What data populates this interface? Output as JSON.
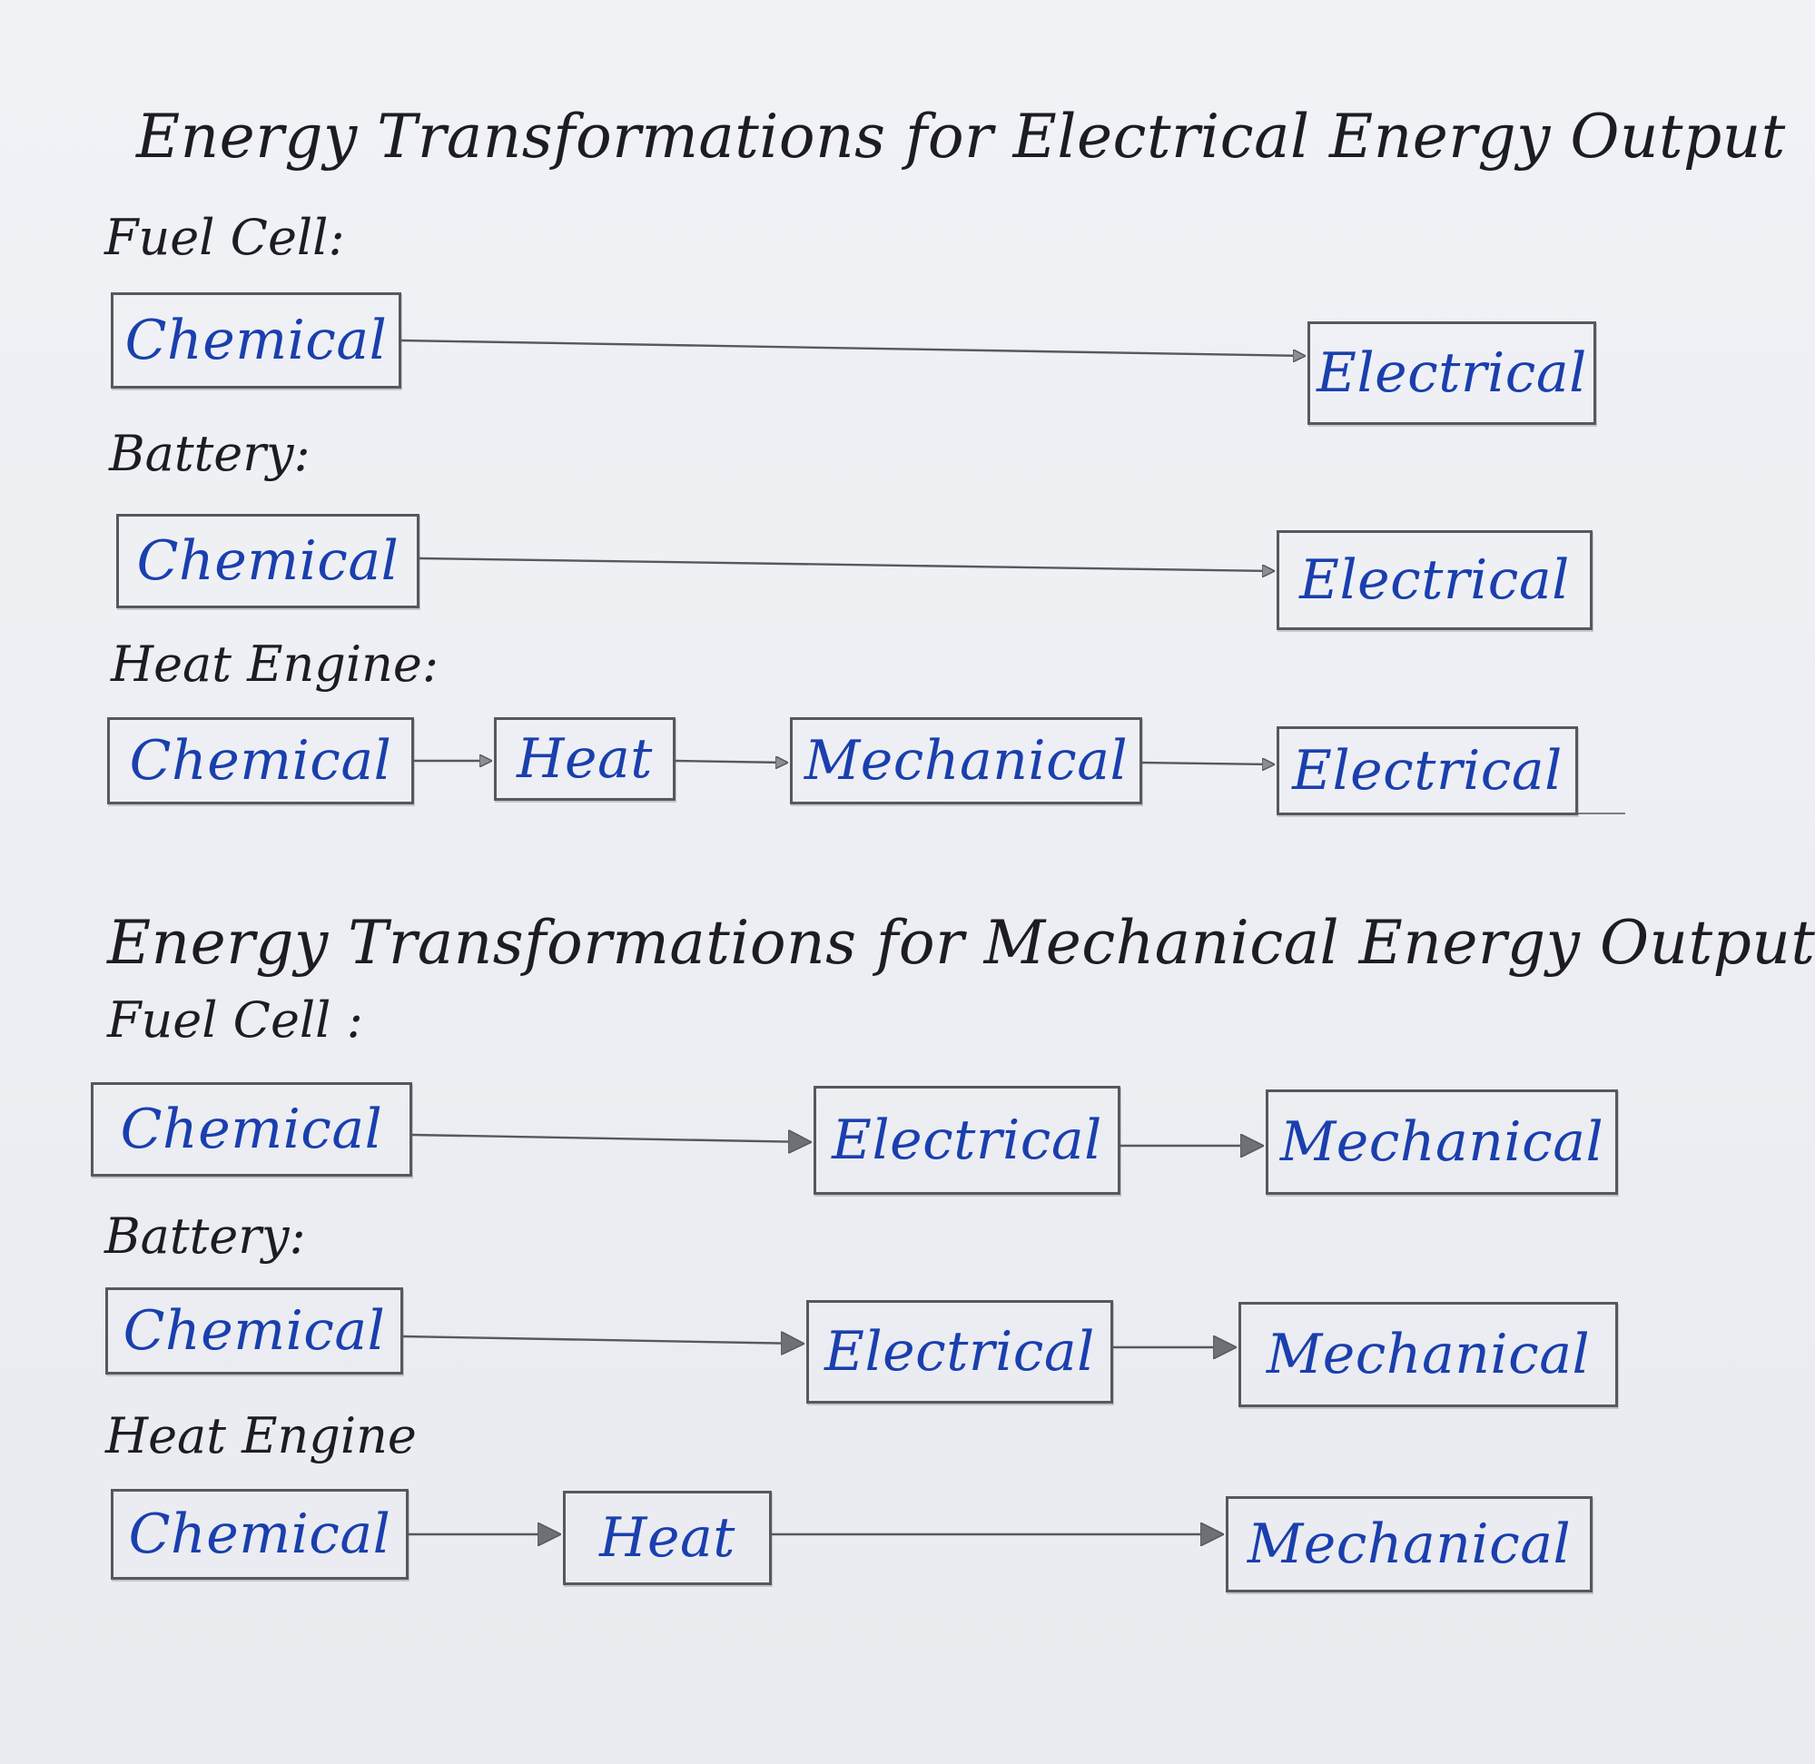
{
  "colors": {
    "paper": "#eef0f4",
    "ink_black": "#1c1c22",
    "ink_blue": "#1a3fae",
    "pencil_grey": "#56585e"
  },
  "sections": [
    {
      "title": "Energy Transformations for Electrical Energy Output",
      "rows": [
        {
          "label": "Fuel Cell:",
          "steps": [
            "Chemical",
            "Electrical"
          ]
        },
        {
          "label": "Battery:",
          "steps": [
            "Chemical",
            "Electrical"
          ]
        },
        {
          "label": "Heat Engine:",
          "steps": [
            "Chemical",
            "Heat",
            "Mechanical",
            "Electrical"
          ]
        }
      ]
    },
    {
      "title": "Energy Transformations for Mechanical Energy Output",
      "rows": [
        {
          "label": "Fuel Cell :",
          "steps": [
            "Chemical",
            "Electrical",
            "Mechanical"
          ]
        },
        {
          "label": "Battery:",
          "steps": [
            "Chemical",
            "Electrical",
            "Mechanical"
          ]
        },
        {
          "label": "Heat Engine",
          "steps": [
            "Chemical",
            "Heat",
            "Mechanical"
          ]
        }
      ]
    }
  ]
}
